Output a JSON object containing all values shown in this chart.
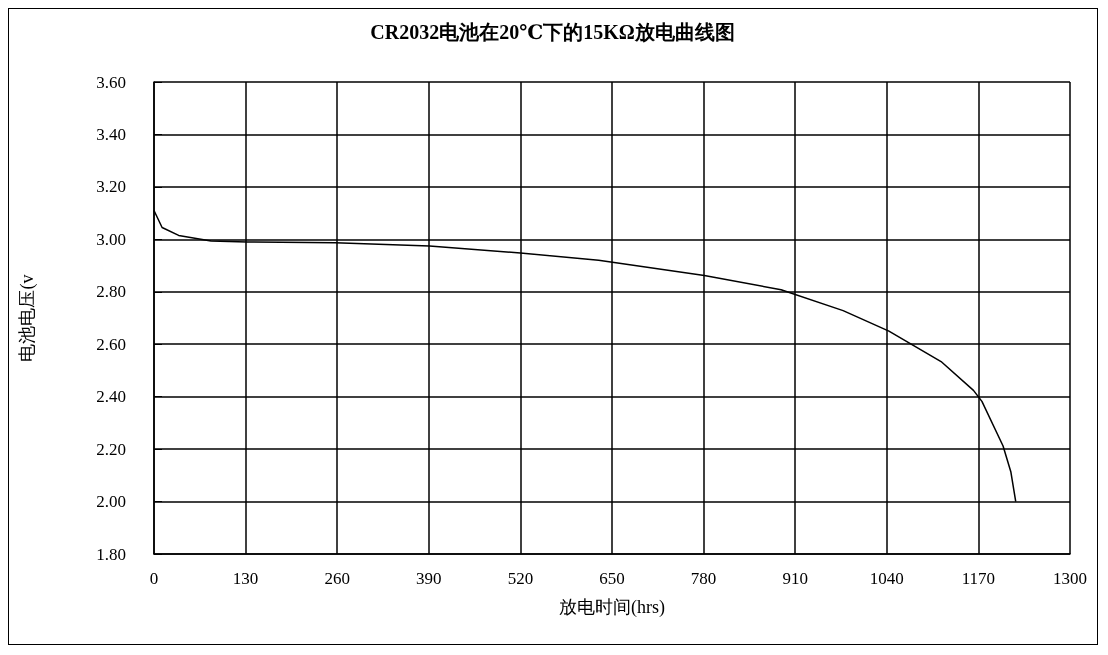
{
  "chart_data": {
    "type": "line",
    "title": "CR2032电池在20℃下的15KΩ放电曲线图",
    "xlabel": "放电时间(hrs)",
    "ylabel": "电池电压(v",
    "x": [
      0,
      11.5,
      35,
      81,
      132,
      257,
      391,
      520,
      631,
      781,
      890,
      978,
      1043,
      1117,
      1163,
      1175,
      1205,
      1216,
      1223
    ],
    "series": [
      {
        "color": "#000000",
        "values": [
          3.11,
          3.045,
          3.015,
          2.994,
          2.99,
          2.987,
          2.975,
          2.948,
          2.92,
          2.862,
          2.808,
          2.728,
          2.65,
          2.534,
          2.424,
          2.382,
          2.212,
          2.114,
          2.0
        ]
      }
    ],
    "xlim": [
      0,
      1300
    ],
    "xticks": [
      0,
      130,
      260,
      390,
      520,
      650,
      780,
      910,
      1040,
      1170,
      1300
    ],
    "ylim": [
      1.8,
      3.6
    ],
    "yticks": [
      {
        "value": 1.8,
        "label": "1.80"
      },
      {
        "value": 2.0,
        "label": "2.00"
      },
      {
        "value": 2.2,
        "label": "2.20"
      },
      {
        "value": 2.4,
        "label": "2.40"
      },
      {
        "value": 2.6,
        "label": "2.60"
      },
      {
        "value": 2.8,
        "label": "2.80"
      },
      {
        "value": 3.0,
        "label": "3.00"
      },
      {
        "value": 3.2,
        "label": "3.20"
      },
      {
        "value": 3.4,
        "label": "3.40"
      },
      {
        "value": 3.6,
        "label": "3.60"
      }
    ],
    "grid": true,
    "marker": "none",
    "line_style": "solid"
  }
}
